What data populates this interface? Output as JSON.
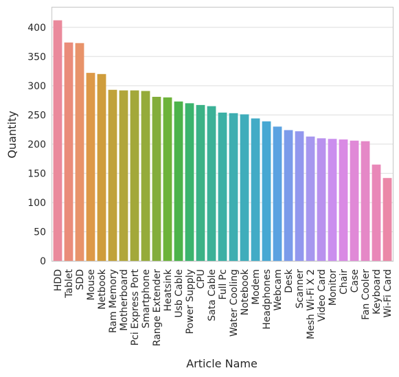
{
  "chart_data": {
    "type": "bar",
    "title": "",
    "xlabel": "Article Name",
    "ylabel": "Quantity",
    "ylim": [
      0,
      435
    ],
    "yticks": [
      0,
      50,
      100,
      150,
      200,
      250,
      300,
      350,
      400
    ],
    "grid": true,
    "categories": [
      "HDD",
      "Tablet",
      "SDD",
      "Mouse",
      "Netbook",
      "Ram Memory",
      "Motherboard",
      "Pci Express Port",
      "Smartphone",
      "Range Extender",
      "Heatsink",
      "Usb Cable",
      "Power Supply",
      "CPU",
      "Sata Cable",
      "Full Pc",
      "Water Cooling",
      "Notebook",
      "Modem",
      "Headphones",
      "Webcam",
      "Desk",
      "Scanner",
      "Mesh Wi-Fi X 2",
      "Video Card",
      "Monitor",
      "Chair",
      "Case",
      "Fan Cooler",
      "Keyboard",
      "Wi-Fi Card"
    ],
    "values": [
      412,
      374,
      373,
      322,
      320,
      293,
      292,
      292,
      291,
      281,
      280,
      273,
      270,
      267,
      265,
      254,
      253,
      251,
      244,
      239,
      230,
      224,
      222,
      213,
      210,
      209,
      208,
      206,
      205,
      165,
      142
    ],
    "colors": [
      "#ea8a9c",
      "#ea8c7a",
      "#e8936a",
      "#dd9947",
      "#cf9d3c",
      "#c0a23b",
      "#b1a63a",
      "#a3a83a",
      "#95ab3a",
      "#83ad3b",
      "#6db33a",
      "#4cb34a",
      "#3bb46d",
      "#3bb286",
      "#3bb197",
      "#3cb0a5",
      "#3eaeb1",
      "#3fadbb",
      "#42abc6",
      "#46a8d3",
      "#5ba2e1",
      "#7b9bea",
      "#9297ee",
      "#a797ef",
      "#b991ee",
      "#cb8eee",
      "#d98ae4",
      "#e089d7",
      "#e588c7",
      "#e987b8",
      "#eb88a8"
    ]
  }
}
